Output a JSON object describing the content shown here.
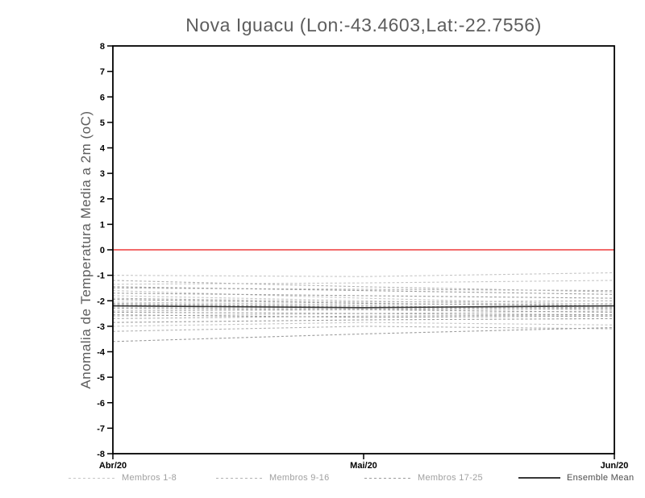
{
  "title": "Nova Iguacu (Lon:-43.4603,Lat:-22.7556)",
  "colors": {
    "axis": "#000000",
    "title_text": "#5d5d5d",
    "zero_line": "#ee3a3a",
    "members_1_8": "#c6c6c6",
    "members_9_16": "#b2b2b2",
    "members_17_25": "#9c9c9c",
    "ensemble_mean": "#383838"
  },
  "chart_data": {
    "type": "line",
    "title": "Nova Iguacu (Lon:-43.4603,Lat:-22.7556)",
    "ylabel": "Anomalia de Temperatura Media a 2m (oC)",
    "xlabel": "",
    "x_labels": [
      "Abr/20",
      "Mai/20",
      "Jun/20"
    ],
    "ylim": [
      -8,
      8
    ],
    "y_ticks": [
      8,
      7,
      6,
      5,
      4,
      3,
      2,
      1,
      0,
      -1,
      -2,
      -3,
      -4,
      -5,
      -6,
      -7,
      -8
    ],
    "grid": false,
    "legend_position": "bottom",
    "zero_line": {
      "y": 0,
      "color": "#ee3a3a"
    },
    "groups": [
      {
        "name": "Membros 1-8",
        "color": "#c6c6c6",
        "style": "dashed",
        "members": [
          [
            -1.0,
            -1.05,
            -0.9
          ],
          [
            -1.35,
            -1.3,
            -1.2
          ],
          [
            -1.6,
            -1.9,
            -2.15
          ],
          [
            -1.8,
            -2.0,
            -2.2
          ],
          [
            -2.05,
            -2.15,
            -2.1
          ],
          [
            -2.25,
            -2.3,
            -2.35
          ],
          [
            -2.6,
            -2.5,
            -2.4
          ],
          [
            -3.0,
            -2.85,
            -2.95
          ]
        ]
      },
      {
        "name": "Membros 9-16",
        "color": "#b2b2b2",
        "style": "dashed",
        "members": [
          [
            -1.2,
            -1.45,
            -1.65
          ],
          [
            -1.5,
            -1.55,
            -1.6
          ],
          [
            -1.9,
            -2.05,
            -2.0
          ],
          [
            -2.1,
            -2.2,
            -2.3
          ],
          [
            -2.2,
            -2.3,
            -2.25
          ],
          [
            -2.4,
            -2.35,
            -2.3
          ],
          [
            -2.7,
            -2.6,
            -2.55
          ],
          [
            -3.2,
            -3.0,
            -3.1
          ]
        ]
      },
      {
        "name": "Membros 17-25",
        "color": "#9c9c9c",
        "style": "dashed",
        "members": [
          [
            -1.45,
            -1.6,
            -1.75
          ],
          [
            -1.7,
            -1.8,
            -1.9
          ],
          [
            -1.95,
            -2.1,
            -2.2
          ],
          [
            -2.15,
            -2.25,
            -2.2
          ],
          [
            -2.3,
            -2.35,
            -2.45
          ],
          [
            -2.45,
            -2.5,
            -2.55
          ],
          [
            -2.55,
            -2.65,
            -2.6
          ],
          [
            -2.85,
            -2.75,
            -2.7
          ],
          [
            -3.6,
            -3.3,
            -3.05
          ]
        ]
      }
    ],
    "ensemble_mean": {
      "name": "Ensemble Mean",
      "color": "#383838",
      "style": "solid",
      "values": [
        -2.2,
        -2.27,
        -2.2
      ]
    }
  }
}
